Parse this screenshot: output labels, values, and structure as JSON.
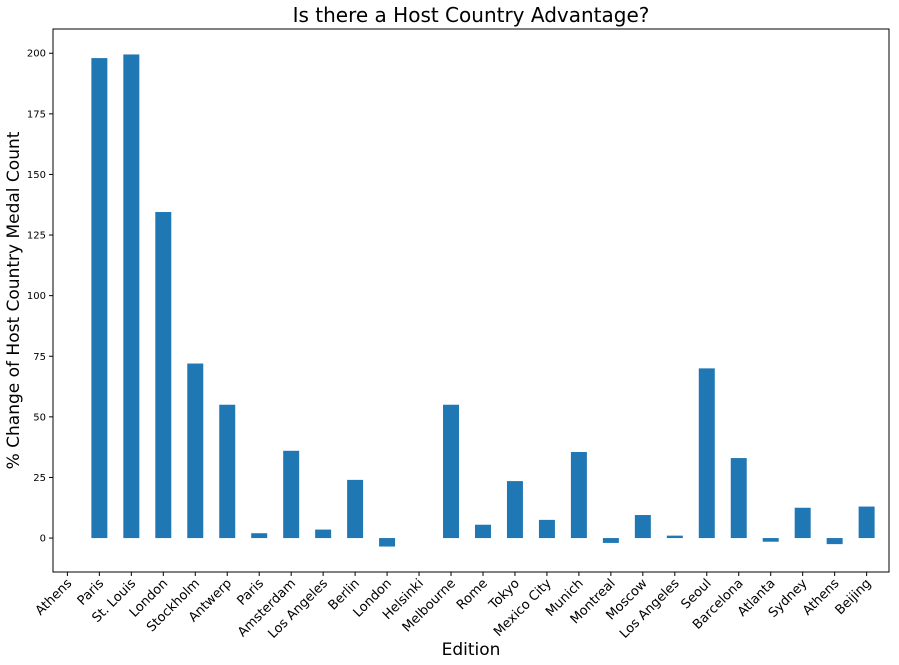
{
  "chart_data": {
    "type": "bar",
    "title": "Is there a Host Country Advantage?",
    "xlabel": "Edition",
    "ylabel": "% Change of Host Country Medal Count",
    "categories": [
      "Athens",
      "Paris",
      "St. Louis",
      "London",
      "Stockholm",
      "Antwerp",
      "Paris",
      "Amsterdam",
      "Los Angeles",
      "Berlin",
      "London",
      "Helsinki",
      "Melbourne",
      "Rome",
      "Tokyo",
      "Mexico City",
      "Munich",
      "Montreal",
      "Moscow",
      "Los Angeles",
      "Seoul",
      "Barcelona",
      "Atlanta",
      "Sydney",
      "Athens",
      "Beijing"
    ],
    "values": [
      null,
      198,
      199.5,
      134.5,
      72,
      55,
      2,
      36,
      3.5,
      24,
      -3.5,
      null,
      55,
      5.5,
      23.5,
      7.5,
      35.5,
      -2,
      9.5,
      1,
      70,
      33,
      -1.5,
      12.5,
      -2.5,
      13
    ],
    "yticks": [
      0,
      25,
      50,
      75,
      100,
      125,
      150,
      175,
      200
    ],
    "ylim": [
      -14,
      210
    ],
    "bar_color": "#1f77b4",
    "grid": false,
    "legend": "none"
  }
}
